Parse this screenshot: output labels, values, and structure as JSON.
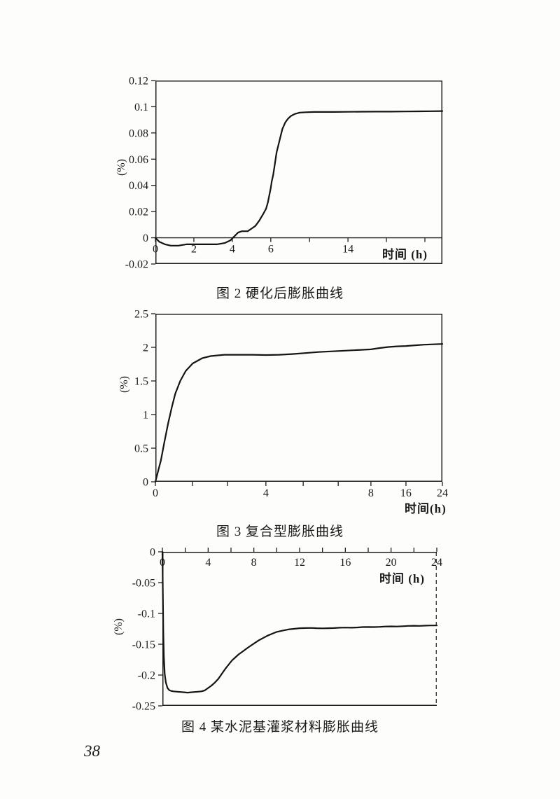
{
  "page": {
    "number": "38"
  },
  "chart_data": [
    {
      "type": "line",
      "caption": "图 2  硬化后膨胀曲线",
      "xlabel": "时间 (h)",
      "ylabel": "(%)",
      "ylim": [
        -0.02,
        0.12
      ],
      "grid": false,
      "legend": "none",
      "border": "box",
      "x_axis": {
        "position": "zero"
      },
      "y_ticks": [
        {
          "v": 0.12,
          "label": "0.12"
        },
        {
          "v": 0.1,
          "label": "0.1"
        },
        {
          "v": 0.08,
          "label": "0.08"
        },
        {
          "v": 0.06,
          "label": "0.06"
        },
        {
          "v": 0.04,
          "label": "0.04"
        },
        {
          "v": 0.02,
          "label": "0.02"
        },
        {
          "v": 0,
          "label": "0"
        },
        {
          "v": -0.02,
          "label": "-0.02"
        }
      ],
      "x_ticks": [
        {
          "pct": 0,
          "label": "0"
        },
        {
          "pct": 13.4,
          "label": "2"
        },
        {
          "pct": 26.8,
          "label": "4"
        },
        {
          "pct": 40.2,
          "label": "6"
        },
        {
          "pct": 53.7,
          "label": ""
        },
        {
          "pct": 67.1,
          "label": "14"
        },
        {
          "pct": 80.5,
          "label": ""
        },
        {
          "pct": 93.9,
          "label": ""
        }
      ],
      "x_scale_anchors": [
        [
          0,
          0
        ],
        [
          2,
          13.4
        ],
        [
          4,
          26.8
        ],
        [
          6,
          40.2
        ],
        [
          14,
          67.1
        ],
        [
          24,
          100
        ]
      ],
      "points": [
        [
          0,
          0
        ],
        [
          0.2,
          -0.003
        ],
        [
          0.5,
          -0.005
        ],
        [
          0.8,
          -0.006
        ],
        [
          1.2,
          -0.006
        ],
        [
          1.6,
          -0.005
        ],
        [
          2,
          -0.005
        ],
        [
          2.4,
          -0.005
        ],
        [
          2.8,
          -0.005
        ],
        [
          3.2,
          -0.005
        ],
        [
          3.6,
          -0.004
        ],
        [
          3.9,
          -0.002
        ],
        [
          4.1,
          0.001
        ],
        [
          4.3,
          0.004
        ],
        [
          4.5,
          0.005
        ],
        [
          4.8,
          0.005
        ],
        [
          5,
          0.007
        ],
        [
          5.2,
          0.009
        ],
        [
          5.4,
          0.013
        ],
        [
          5.6,
          0.018
        ],
        [
          5.75,
          0.022
        ],
        [
          5.85,
          0.027
        ],
        [
          6,
          0.038
        ],
        [
          6.1,
          0.043
        ],
        [
          6.25,
          0.048
        ],
        [
          6.4,
          0.055
        ],
        [
          6.6,
          0.065
        ],
        [
          6.8,
          0.071
        ],
        [
          7,
          0.077
        ],
        [
          7.2,
          0.083
        ],
        [
          7.5,
          0.088
        ],
        [
          7.8,
          0.091
        ],
        [
          8.1,
          0.093
        ],
        [
          8.5,
          0.0945
        ],
        [
          9,
          0.0955
        ],
        [
          9.6,
          0.0958
        ],
        [
          10.5,
          0.096
        ],
        [
          11.5,
          0.096
        ],
        [
          12.5,
          0.096
        ],
        [
          14,
          0.0961
        ],
        [
          15.5,
          0.0962
        ],
        [
          17,
          0.0963
        ],
        [
          18.5,
          0.0963
        ],
        [
          20,
          0.0964
        ],
        [
          21.5,
          0.0965
        ],
        [
          23,
          0.0966
        ],
        [
          24,
          0.0967
        ]
      ]
    },
    {
      "type": "line",
      "caption": "图 3  复合型膨胀曲线",
      "xlabel": "时间(h)",
      "ylabel": "(%)",
      "ylim": [
        0,
        2.5
      ],
      "grid": false,
      "legend": "none",
      "border": "box",
      "x_axis": {
        "position": "bottom"
      },
      "y_ticks": [
        {
          "v": 2.5,
          "label": "2.5"
        },
        {
          "v": 2,
          "label": "2"
        },
        {
          "v": 1.5,
          "label": "1.5"
        },
        {
          "v": 1,
          "label": "1"
        },
        {
          "v": 0.5,
          "label": "0.5"
        },
        {
          "v": 0,
          "label": "0"
        }
      ],
      "x_ticks": [
        {
          "pct": 0,
          "label": "0"
        },
        {
          "pct": 12.9,
          "label": ""
        },
        {
          "pct": 25.1,
          "label": ""
        },
        {
          "pct": 38.5,
          "label": "4"
        },
        {
          "pct": 51.5,
          "label": ""
        },
        {
          "pct": 63.7,
          "label": ""
        },
        {
          "pct": 75.1,
          "label": "8"
        },
        {
          "pct": 87.3,
          "label": "16"
        },
        {
          "pct": 100,
          "label": "24"
        }
      ],
      "x_scale_anchors": [
        [
          0,
          0
        ],
        [
          4,
          38.5
        ],
        [
          8,
          75.1
        ],
        [
          16,
          87.3
        ],
        [
          24,
          100
        ]
      ],
      "points": [
        [
          0,
          0
        ],
        [
          0.1,
          0.16
        ],
        [
          0.2,
          0.32
        ],
        [
          0.33,
          0.6
        ],
        [
          0.46,
          0.87
        ],
        [
          0.6,
          1.12
        ],
        [
          0.72,
          1.31
        ],
        [
          0.9,
          1.5
        ],
        [
          1.1,
          1.65
        ],
        [
          1.35,
          1.76
        ],
        [
          1.7,
          1.84
        ],
        [
          2,
          1.87
        ],
        [
          2.5,
          1.89
        ],
        [
          3,
          1.89
        ],
        [
          3.5,
          1.89
        ],
        [
          4,
          1.885
        ],
        [
          4.5,
          1.89
        ],
        [
          5,
          1.9
        ],
        [
          5.5,
          1.915
        ],
        [
          6,
          1.93
        ],
        [
          7,
          1.95
        ],
        [
          8,
          1.97
        ],
        [
          10,
          1.99
        ],
        [
          12,
          2.005
        ],
        [
          14,
          2.015
        ],
        [
          16,
          2.02
        ],
        [
          18,
          2.03
        ],
        [
          20,
          2.04
        ],
        [
          22,
          2.045
        ],
        [
          24,
          2.05
        ]
      ]
    },
    {
      "type": "line",
      "caption": "图 4  某水泥基灌浆材料膨胀曲线",
      "xlabel": "时间 (h)",
      "ylabel": "(%)",
      "ylim": [
        -0.25,
        0
      ],
      "grid": false,
      "legend": "none",
      "border": "box-right-dashed",
      "x_axis": {
        "position": "top"
      },
      "y_ticks": [
        {
          "v": 0,
          "label": "0"
        },
        {
          "v": -0.05,
          "label": "-0.05"
        },
        {
          "v": -0.1,
          "label": "-0.1"
        },
        {
          "v": -0.15,
          "label": "-0.15"
        },
        {
          "v": -0.2,
          "label": "-0.2"
        },
        {
          "v": -0.25,
          "label": "-0.25"
        }
      ],
      "x_ticks": [
        {
          "pct": 0,
          "label": "0"
        },
        {
          "pct": 8.33,
          "label": ""
        },
        {
          "pct": 16.67,
          "label": "4"
        },
        {
          "pct": 25,
          "label": ""
        },
        {
          "pct": 33.33,
          "label": "8"
        },
        {
          "pct": 41.67,
          "label": ""
        },
        {
          "pct": 50,
          "label": "12"
        },
        {
          "pct": 58.33,
          "label": ""
        },
        {
          "pct": 66.67,
          "label": "16"
        },
        {
          "pct": 75,
          "label": ""
        },
        {
          "pct": 83.33,
          "label": "20"
        },
        {
          "pct": 91.67,
          "label": ""
        },
        {
          "pct": 100,
          "label": "24"
        }
      ],
      "x_scale_anchors": [
        [
          0,
          0
        ],
        [
          24,
          100
        ]
      ],
      "points": [
        [
          0,
          0
        ],
        [
          0.04,
          -0.07
        ],
        [
          0.08,
          -0.13
        ],
        [
          0.13,
          -0.17
        ],
        [
          0.2,
          -0.198
        ],
        [
          0.3,
          -0.212
        ],
        [
          0.45,
          -0.221
        ],
        [
          0.6,
          -0.2245
        ],
        [
          0.8,
          -0.226
        ],
        [
          1,
          -0.2265
        ],
        [
          1.3,
          -0.227
        ],
        [
          1.6,
          -0.2275
        ],
        [
          1.9,
          -0.228
        ],
        [
          2.2,
          -0.2285
        ],
        [
          2.5,
          -0.228
        ],
        [
          2.8,
          -0.2275
        ],
        [
          3.1,
          -0.227
        ],
        [
          3.4,
          -0.2265
        ],
        [
          3.7,
          -0.225
        ],
        [
          4,
          -0.221
        ],
        [
          4.3,
          -0.217
        ],
        [
          4.6,
          -0.212
        ],
        [
          4.9,
          -0.206
        ],
        [
          5.2,
          -0.198
        ],
        [
          5.5,
          -0.19
        ],
        [
          5.8,
          -0.183
        ],
        [
          6.1,
          -0.176
        ],
        [
          6.4,
          -0.171
        ],
        [
          6.7,
          -0.166
        ],
        [
          7,
          -0.162
        ],
        [
          7.3,
          -0.158
        ],
        [
          7.6,
          -0.154
        ],
        [
          8,
          -0.149
        ],
        [
          8.4,
          -0.144
        ],
        [
          8.8,
          -0.14
        ],
        [
          9.2,
          -0.136
        ],
        [
          9.6,
          -0.133
        ],
        [
          10,
          -0.13
        ],
        [
          10.5,
          -0.128
        ],
        [
          11,
          -0.126
        ],
        [
          11.5,
          -0.125
        ],
        [
          12,
          -0.124
        ],
        [
          12.5,
          -0.1238
        ],
        [
          13,
          -0.1235
        ],
        [
          13.5,
          -0.124
        ],
        [
          14,
          -0.1242
        ],
        [
          14.5,
          -0.124
        ],
        [
          15,
          -0.1238
        ],
        [
          15.5,
          -0.1232
        ],
        [
          16,
          -0.123
        ],
        [
          16.5,
          -0.1232
        ],
        [
          17,
          -0.1228
        ],
        [
          17.5,
          -0.1222
        ],
        [
          18,
          -0.122
        ],
        [
          18.5,
          -0.1222
        ],
        [
          19,
          -0.1218
        ],
        [
          19.5,
          -0.1212
        ],
        [
          20,
          -0.121
        ],
        [
          20.5,
          -0.1212
        ],
        [
          21,
          -0.1208
        ],
        [
          21.5,
          -0.1202
        ],
        [
          22,
          -0.12
        ],
        [
          22.5,
          -0.1202
        ],
        [
          23,
          -0.1198
        ],
        [
          23.5,
          -0.1196
        ],
        [
          24,
          -0.1195
        ]
      ]
    }
  ]
}
